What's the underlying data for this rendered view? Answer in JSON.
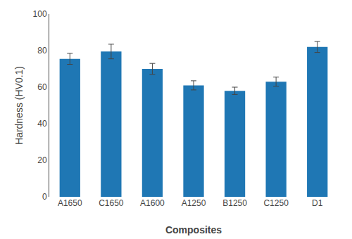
{
  "chart_data": {
    "type": "bar",
    "categories": [
      "A1650",
      "C1650",
      "A1600",
      "A1250",
      "B1250",
      "C1250",
      "D1"
    ],
    "values": [
      75.5,
      79.5,
      70.0,
      61.0,
      58.0,
      63.0,
      82.0
    ],
    "errors": [
      3.0,
      4.0,
      3.0,
      2.5,
      2.0,
      2.5,
      3.0
    ],
    "xlabel": "Composites",
    "ylabel": "Hardness (HV0.1)",
    "ylim": [
      0,
      100
    ],
    "yticks": [
      0,
      20,
      40,
      60,
      80,
      100
    ],
    "grid": false
  }
}
